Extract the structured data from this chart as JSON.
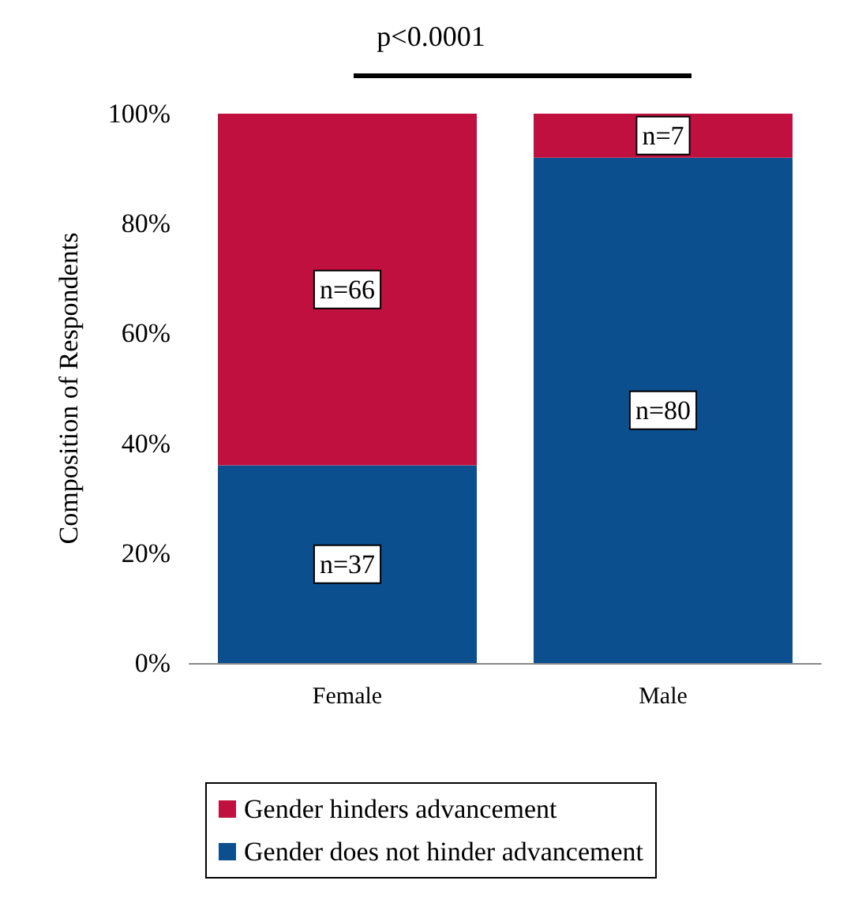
{
  "chart_data": {
    "type": "bar",
    "stacked": true,
    "ylabel": "Composition of Respondents",
    "categories": [
      "Female",
      "Male"
    ],
    "series": [
      {
        "name": "Gender does not hinder advancement",
        "color": "#0b4f8f",
        "values": [
          36,
          92
        ]
      },
      {
        "name": "Gender hinders advancement",
        "color": "#c0103f",
        "values": [
          64,
          8
        ]
      }
    ],
    "ylim": [
      0,
      100
    ],
    "yticks": [
      {
        "value": 0,
        "label": "0%"
      },
      {
        "value": 20,
        "label": "20%"
      },
      {
        "value": 40,
        "label": "40%"
      },
      {
        "value": 60,
        "label": "60%"
      },
      {
        "value": 80,
        "label": "80%"
      },
      {
        "value": 100,
        "label": "100%"
      }
    ],
    "grid": false,
    "legend": "bottom",
    "annotations": [
      "p<0.0001",
      {
        "text": "n=37",
        "x": "Female",
        "y": 18
      },
      {
        "text": "n=66",
        "x": "Female",
        "y": 68
      },
      {
        "text": "n=80",
        "x": "Male",
        "y": 46
      },
      {
        "text": "n=7",
        "x": "Male",
        "y": 96
      }
    ]
  }
}
